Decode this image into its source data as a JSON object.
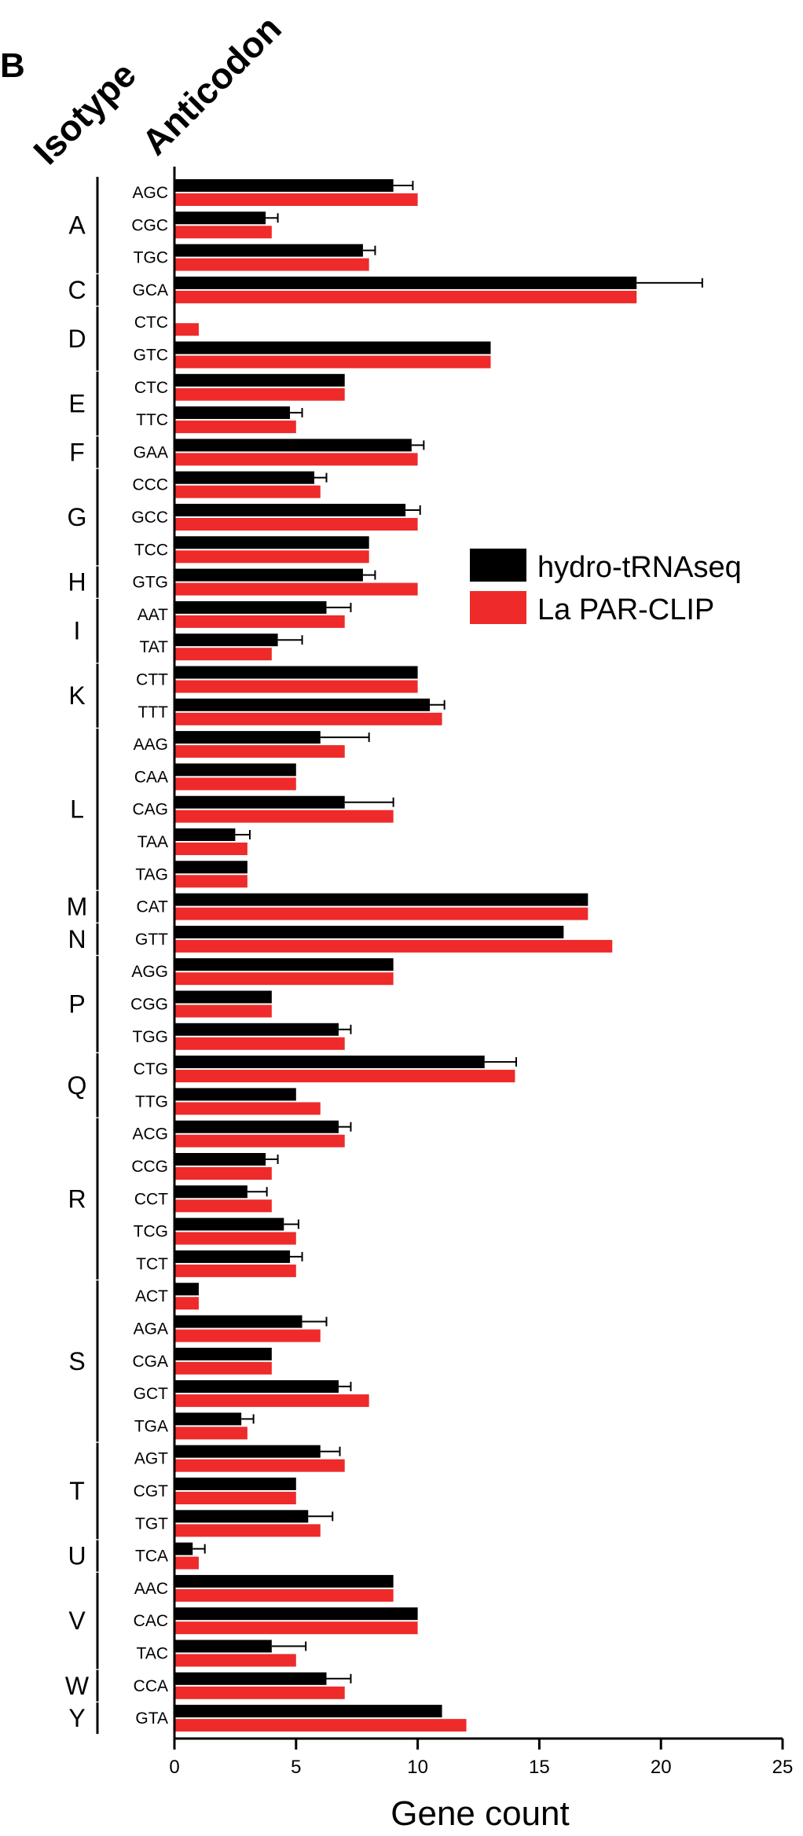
{
  "panel_label": "B",
  "header": {
    "isotype": "Isotype",
    "anticodon": "Anticodon"
  },
  "colors": {
    "hydro": "#000000",
    "la": "#ee2a2a"
  },
  "chart_data": {
    "type": "bar",
    "orientation": "horizontal",
    "xlabel": "Gene count",
    "xlim": [
      0,
      25
    ],
    "xticks": [
      0,
      5,
      10,
      15,
      20,
      25
    ],
    "legend": {
      "position": "right",
      "entries": [
        "hydro-tRNAseq",
        "La PAR-CLIP"
      ]
    },
    "groups": [
      {
        "isotype": "A",
        "anticodons": [
          "AGC",
          "CGC",
          "TGC"
        ]
      },
      {
        "isotype": "C",
        "anticodons": [
          "GCA"
        ]
      },
      {
        "isotype": "D",
        "anticodons": [
          "CTC",
          "GTC"
        ]
      },
      {
        "isotype": "E",
        "anticodons": [
          "CTC",
          "TTC"
        ]
      },
      {
        "isotype": "F",
        "anticodons": [
          "GAA"
        ]
      },
      {
        "isotype": "G",
        "anticodons": [
          "CCC",
          "GCC",
          "TCC"
        ]
      },
      {
        "isotype": "H",
        "anticodons": [
          "GTG"
        ]
      },
      {
        "isotype": "I",
        "anticodons": [
          "AAT",
          "TAT"
        ]
      },
      {
        "isotype": "K",
        "anticodons": [
          "CTT",
          "TTT"
        ]
      },
      {
        "isotype": "L",
        "anticodons": [
          "AAG",
          "CAA",
          "CAG",
          "TAA",
          "TAG"
        ]
      },
      {
        "isotype": "M",
        "anticodons": [
          "CAT"
        ]
      },
      {
        "isotype": "N",
        "anticodons": [
          "GTT"
        ]
      },
      {
        "isotype": "P",
        "anticodons": [
          "AGG",
          "CGG",
          "TGG"
        ]
      },
      {
        "isotype": "Q",
        "anticodons": [
          "CTG",
          "TTG"
        ]
      },
      {
        "isotype": "R",
        "anticodons": [
          "ACG",
          "CCG",
          "CCT",
          "TCG",
          "TCT"
        ]
      },
      {
        "isotype": "S",
        "anticodons": [
          "ACT",
          "AGA",
          "CGA",
          "GCT",
          "TGA"
        ]
      },
      {
        "isotype": "T",
        "anticodons": [
          "AGT",
          "CGT",
          "TGT"
        ]
      },
      {
        "isotype": "U",
        "anticodons": [
          "TCA"
        ]
      },
      {
        "isotype": "V",
        "anticodons": [
          "AAC",
          "CAC",
          "TAC"
        ]
      },
      {
        "isotype": "W",
        "anticodons": [
          "CCA"
        ]
      },
      {
        "isotype": "Y",
        "anticodons": [
          "GTA"
        ]
      }
    ],
    "series": [
      {
        "name": "hydro-tRNAseq",
        "values": [
          9,
          3.75,
          7.75,
          19,
          0,
          13,
          7,
          4.75,
          9.75,
          5.75,
          9.5,
          8,
          7.75,
          6.25,
          4.25,
          10,
          10.5,
          6,
          5,
          7,
          2.5,
          3,
          17,
          16,
          9,
          4,
          6.75,
          12.75,
          5,
          6.75,
          3.75,
          3,
          4.5,
          4.75,
          1,
          5.25,
          4,
          6.75,
          2.75,
          6,
          5,
          5.5,
          0.75,
          9,
          10,
          4,
          6.25,
          11
        ],
        "errors": [
          0.8,
          0.5,
          0.5,
          2.7,
          0,
          0,
          0,
          0.5,
          0.5,
          0.5,
          0.6,
          0,
          0.5,
          1,
          1,
          0,
          0.6,
          2,
          0,
          2,
          0.6,
          0,
          0,
          0,
          0,
          0,
          0.5,
          1.3,
          0,
          0.5,
          0.5,
          0.8,
          0.6,
          0.5,
          0,
          1,
          0,
          0.5,
          0.5,
          0.8,
          0,
          1,
          0.5,
          0,
          0,
          1.4,
          1,
          0
        ]
      },
      {
        "name": "La PAR-CLIP",
        "values": [
          10,
          4,
          8,
          19,
          1,
          13,
          7,
          5,
          10,
          6,
          10,
          8,
          10,
          7,
          4,
          10,
          11,
          7,
          5,
          9,
          3,
          3,
          17,
          18,
          9,
          4,
          7,
          14,
          6,
          7,
          4,
          4,
          5,
          5,
          1,
          6,
          4,
          8,
          3,
          7,
          5,
          6,
          1,
          9,
          10,
          5,
          7,
          12
        ]
      }
    ]
  }
}
